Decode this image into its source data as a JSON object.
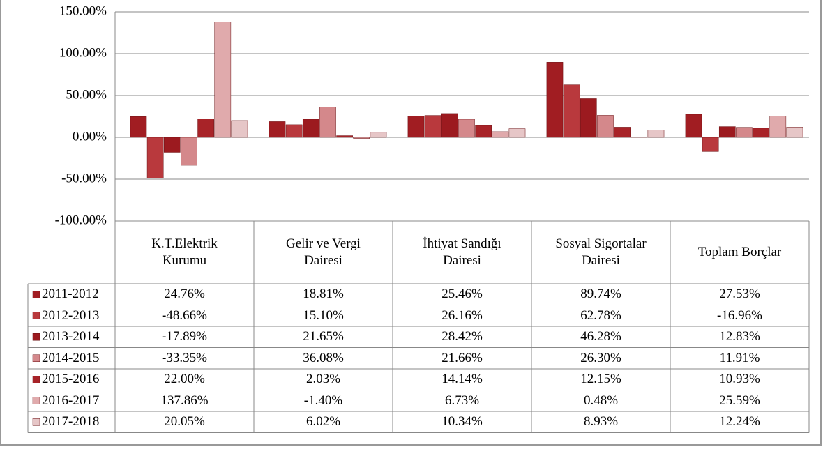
{
  "chart_data": {
    "type": "bar",
    "categories": [
      "K.T.Elektrik Kurumu",
      "Gelir ve Vergi Dairesi",
      "İhtiyat Sandığı Dairesi",
      "Sosyal Sigortalar Dairesi",
      "Toplam Borçlar"
    ],
    "series": [
      {
        "name": "2011-2012",
        "color": "#a11d22",
        "values": [
          24.76,
          18.81,
          25.46,
          89.74,
          27.53
        ],
        "value_labels": [
          "24.76%",
          "18.81%",
          "25.46%",
          "89.74%",
          "27.53%"
        ]
      },
      {
        "name": "2012-2013",
        "color": "#b9393d",
        "values": [
          -48.66,
          15.1,
          26.16,
          62.78,
          -16.96
        ],
        "value_labels": [
          "-48.66%",
          "15.10%",
          "26.16%",
          "62.78%",
          "-16.96%"
        ]
      },
      {
        "name": "2013-2014",
        "color": "#9c1a1f",
        "values": [
          -17.89,
          21.65,
          28.42,
          46.28,
          12.83
        ],
        "value_labels": [
          "-17.89%",
          "21.65%",
          "28.42%",
          "46.28%",
          "12.83%"
        ]
      },
      {
        "name": "2014-2015",
        "color": "#d4888b",
        "values": [
          -33.35,
          36.08,
          21.66,
          26.3,
          11.91
        ],
        "value_labels": [
          "-33.35%",
          "36.08%",
          "21.66%",
          "26.30%",
          "11.91%"
        ]
      },
      {
        "name": "2015-2016",
        "color": "#a82328",
        "values": [
          22.0,
          2.03,
          14.14,
          12.15,
          10.93
        ],
        "value_labels": [
          "22.00%",
          "2.03%",
          "14.14%",
          "12.15%",
          "10.93%"
        ]
      },
      {
        "name": "2016-2017",
        "color": "#e0aaac",
        "values": [
          137.86,
          -1.4,
          6.73,
          0.48,
          25.59
        ],
        "value_labels": [
          "137.86%",
          "-1.40%",
          "6.73%",
          "0.48%",
          "25.59%"
        ]
      },
      {
        "name": "2017-2018",
        "color": "#e6c6c7",
        "values": [
          20.05,
          6.02,
          10.34,
          8.93,
          12.24
        ],
        "value_labels": [
          "20.05%",
          "6.02%",
          "10.34%",
          "8.93%",
          "12.24%"
        ]
      }
    ],
    "ylim": [
      -100,
      150
    ],
    "yticks": [
      {
        "value": -100,
        "label": "-100.00%"
      },
      {
        "value": -50,
        "label": "-50.00%"
      },
      {
        "value": 0,
        "label": "0.00%"
      },
      {
        "value": 50,
        "label": "50.00%"
      },
      {
        "value": 100,
        "label": "100.00%"
      },
      {
        "value": 150,
        "label": "150.00%"
      }
    ],
    "grid": true,
    "legend": "table"
  }
}
